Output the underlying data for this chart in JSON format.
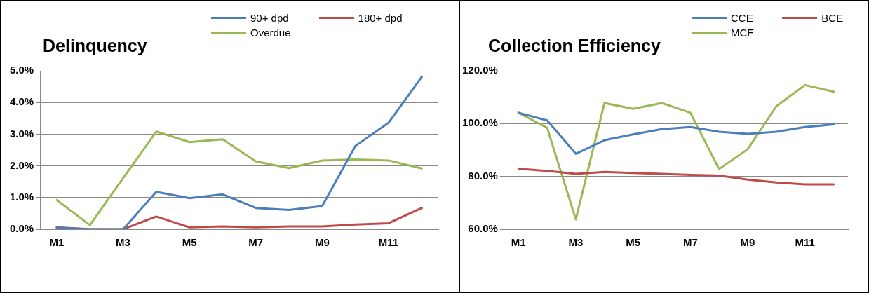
{
  "chart_data": [
    {
      "type": "line",
      "title": "Delinquency",
      "categories": [
        "M1",
        null,
        "M3",
        null,
        "M5",
        null,
        "M7",
        null,
        "M9",
        null,
        "M11",
        null
      ],
      "series": [
        {
          "name": "90+ dpd",
          "color": "#4a7ebb",
          "values": [
            0.05,
            0,
            0,
            1.18,
            0.98,
            1.1,
            0.67,
            0.61,
            0.73,
            2.63,
            3.36,
            4.81
          ]
        },
        {
          "name": "180+ dpd",
          "color": "#be4b48",
          "values": [
            0.06,
            0,
            0,
            0.4,
            0.06,
            0.09,
            0.06,
            0.09,
            0.09,
            0.15,
            0.19,
            0.67
          ]
        },
        {
          "name": "Overdue",
          "color": "#98b954",
          "values": [
            0.92,
            0.13,
            1.61,
            3.08,
            2.75,
            2.84,
            2.14,
            1.93,
            2.17,
            2.2,
            2.17,
            1.92
          ]
        }
      ],
      "ylim": [
        0,
        5
      ],
      "yticks": [
        {
          "value": 0,
          "label": "0.0%"
        },
        {
          "value": 1,
          "label": "1.0%"
        },
        {
          "value": 2,
          "label": "2.0%"
        },
        {
          "value": 3,
          "label": "3.0%"
        },
        {
          "value": 4,
          "label": "4.0%"
        },
        {
          "value": 5,
          "label": "5.0%"
        }
      ],
      "grid": "y",
      "legend": "top right",
      "marker": "none",
      "line_style": "solid"
    },
    {
      "type": "line",
      "title": "Collection Efficiency",
      "categories": [
        "M1",
        null,
        "M3",
        null,
        "M5",
        null,
        "M7",
        null,
        "M9",
        null,
        "M11",
        null
      ],
      "series": [
        {
          "name": "CCE",
          "color": "#4a7ebb",
          "values": [
            104.1,
            101.2,
            88.6,
            93.7,
            95.9,
            97.9,
            98.7,
            96.9,
            96.1,
            96.9,
            98.7,
            99.7
          ]
        },
        {
          "name": "BCE",
          "color": "#be4b48",
          "values": [
            82.9,
            82.1,
            81.0,
            81.7,
            81.3,
            81.0,
            80.6,
            80.3,
            78.8,
            77.7,
            77.0,
            77.0
          ]
        },
        {
          "name": "MCE",
          "color": "#98b954",
          "values": [
            104.1,
            98.4,
            63.7,
            107.8,
            105.6,
            107.8,
            104.1,
            82.8,
            90.3,
            106.6,
            114.6,
            112.1
          ]
        }
      ],
      "ylim": [
        60,
        120
      ],
      "yticks": [
        {
          "value": 60,
          "label": "60.0%"
        },
        {
          "value": 80,
          "label": "80.0%"
        },
        {
          "value": 100,
          "label": "100.0%"
        },
        {
          "value": 120,
          "label": "120.0%"
        }
      ],
      "grid": "y",
      "legend": "top right",
      "marker": "none",
      "line_style": "solid"
    }
  ]
}
